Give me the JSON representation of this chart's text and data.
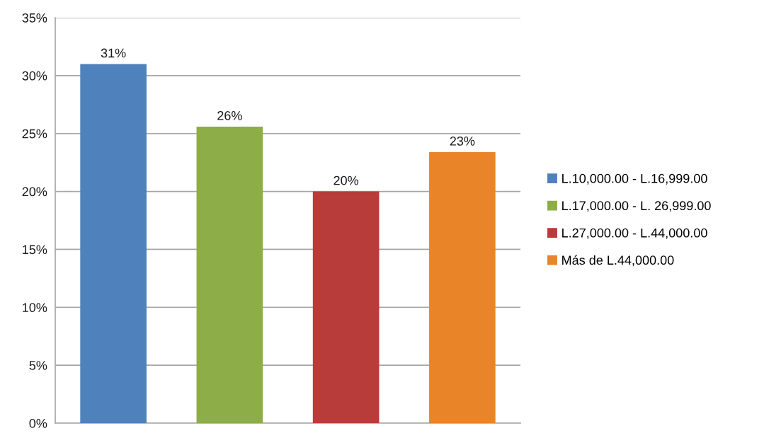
{
  "chart_data": {
    "type": "bar",
    "categories": [
      null
    ],
    "series": [
      {
        "name": "L.10,000.00 - L.16,999.00",
        "color": "#4f81bd",
        "values": [
          31
        ],
        "value_labels": [
          "31%"
        ]
      },
      {
        "name": "L.17,000.00 - L. 26,999.00",
        "color": "#8cad48",
        "values": [
          25.6
        ],
        "value_labels": [
          "26%"
        ]
      },
      {
        "name": "L.27,000.00 - L.44,000.00",
        "color": "#b83c39",
        "values": [
          20
        ],
        "value_labels": [
          "20%"
        ]
      },
      {
        "name": "Más de L.44,000.00",
        "color": "#ea8429",
        "values": [
          23.4
        ],
        "value_labels": [
          "23%"
        ]
      }
    ],
    "ylim": [
      0,
      35
    ],
    "yticks": [
      {
        "value": 0,
        "label": "0%"
      },
      {
        "value": 5,
        "label": "5%"
      },
      {
        "value": 10,
        "label": "10%"
      },
      {
        "value": 15,
        "label": "15%"
      },
      {
        "value": 20,
        "label": "20%"
      },
      {
        "value": 25,
        "label": "25%"
      },
      {
        "value": 30,
        "label": "30%"
      },
      {
        "value": 35,
        "label": "35%"
      }
    ],
    "grid": "y",
    "legend": "right",
    "tick_labels": "y"
  }
}
